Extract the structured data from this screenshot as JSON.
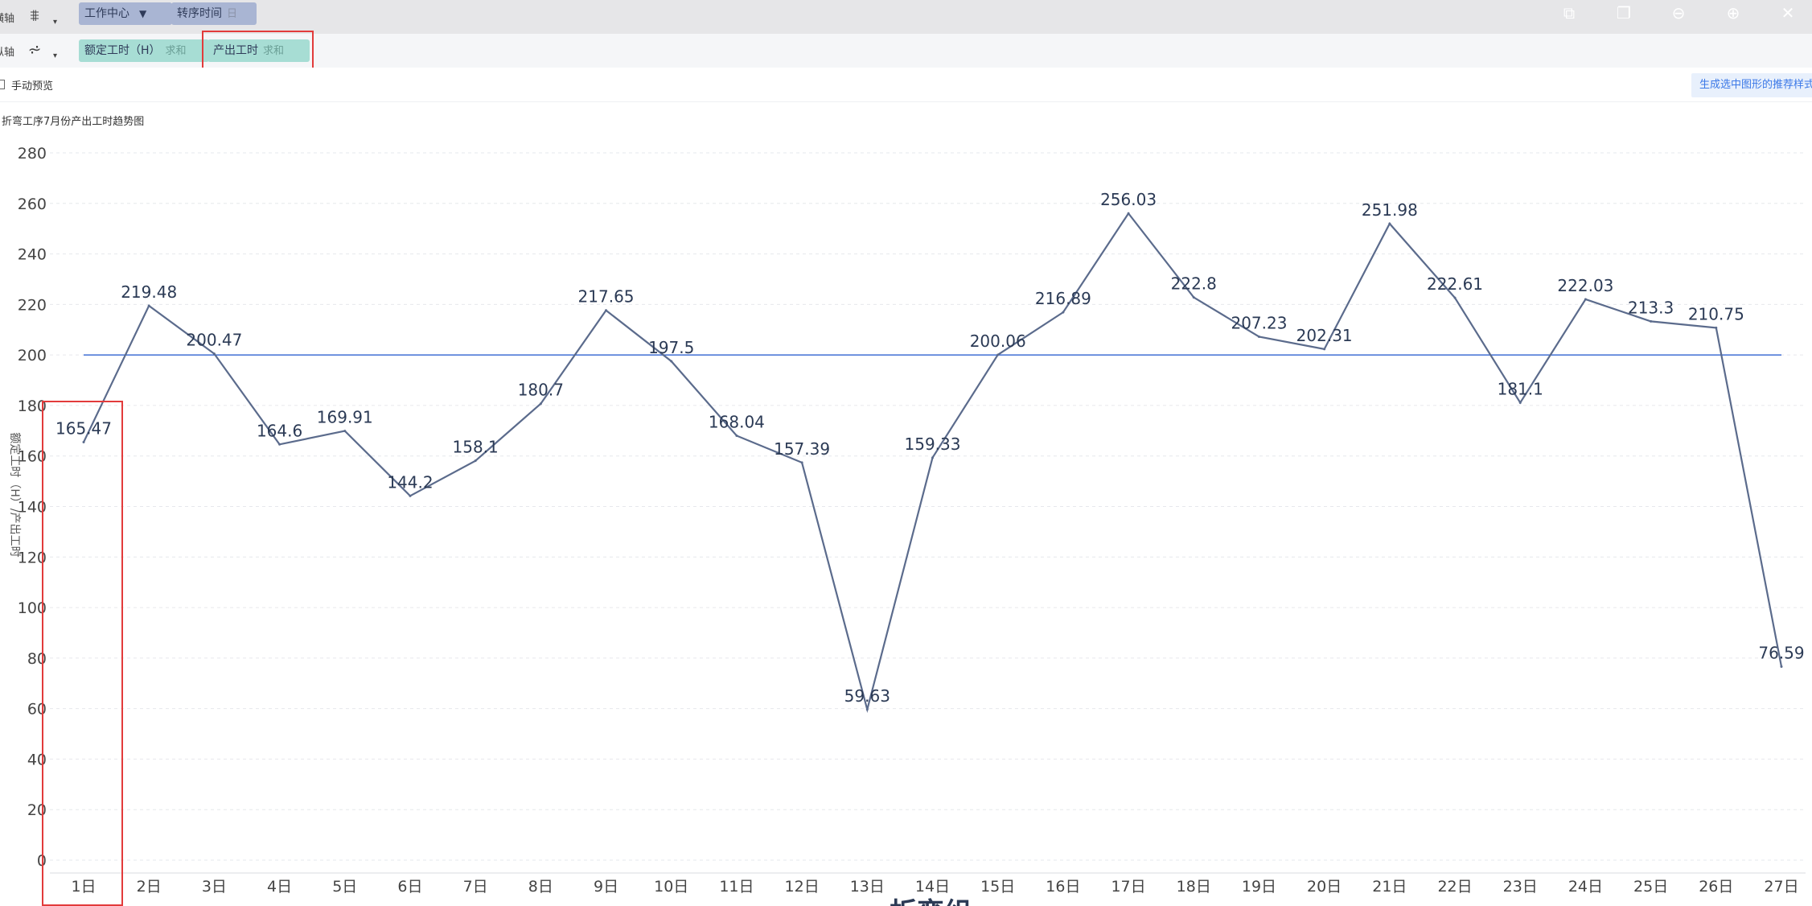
{
  "shelves": {
    "x_axis": {
      "label": "横轴",
      "pills": [
        {
          "name": "工作中心",
          "sub": ""
        },
        {
          "name": "转序时间",
          "sub": "日"
        }
      ]
    },
    "y_axis": {
      "label": "纵轴",
      "pills": [
        {
          "name": "额定工时（H）",
          "sub": "求和"
        },
        {
          "name": "产出工时",
          "sub": "求和"
        }
      ]
    }
  },
  "options": {
    "manual_preview_label": "手动预览",
    "generate_button_label": "生成选中图形的推荐样式"
  },
  "chart_data": {
    "type": "line",
    "title": "折弯工序7月份产出工时趋势图",
    "ylabel": "额定工时（H）/产出工时",
    "categories": [
      "1日",
      "2日",
      "3日",
      "4日",
      "5日",
      "6日",
      "7日",
      "8日",
      "9日",
      "10日",
      "11日",
      "12日",
      "13日",
      "14日",
      "15日",
      "16日",
      "17日",
      "18日",
      "19日",
      "20日",
      "21日",
      "22日",
      "23日",
      "24日",
      "25日",
      "26日",
      "27日"
    ],
    "series": [
      {
        "name": "产出工时",
        "values": [
          165.47,
          219.48,
          200.47,
          164.6,
          169.91,
          144.2,
          158.1,
          180.7,
          217.65,
          197.5,
          168.04,
          157.39,
          59.63,
          159.33,
          200.06,
          216.89,
          256.03,
          222.8,
          207.23,
          202.31,
          251.98,
          222.61,
          181.1,
          222.03,
          213.3,
          210.75,
          76.59
        ],
        "color": "#5b6b8c"
      },
      {
        "name": "额定工时（H）",
        "values": [
          200,
          200,
          200,
          200,
          200,
          200,
          200,
          200,
          200,
          200,
          200,
          200,
          200,
          200,
          200,
          200,
          200,
          200,
          200,
          200,
          200,
          200,
          200,
          200,
          200,
          200,
          200
        ],
        "color": "#4f7ad8"
      }
    ],
    "yticks": [
      0,
      20,
      40,
      60,
      80,
      100,
      120,
      140,
      160,
      180,
      200,
      220,
      240,
      260,
      280
    ],
    "ylim": [
      0,
      280
    ],
    "grid": true,
    "bottom_label": "折弯组"
  }
}
